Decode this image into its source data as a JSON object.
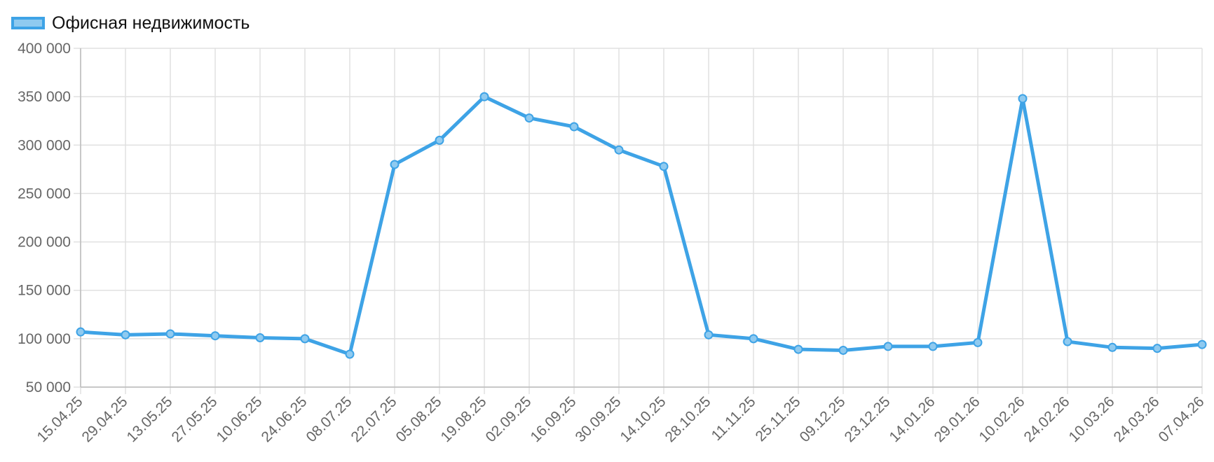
{
  "chart_data": {
    "type": "line",
    "x": [
      "15.04.25",
      "29.04.25",
      "13.05.25",
      "27.05.25",
      "10.06.25",
      "24.06.25",
      "08.07.25",
      "22.07.25",
      "05.08.25",
      "19.08.25",
      "02.09.25",
      "16.09.25",
      "30.09.25",
      "14.10.25",
      "28.10.25",
      "11.11.25",
      "25.11.25",
      "09.12.25",
      "23.12.25",
      "14.01.26",
      "29.01.26",
      "10.02.26",
      "24.02.26",
      "10.03.26",
      "24.03.26",
      "07.04.26"
    ],
    "series": [
      {
        "name": "Офисная недвижимость",
        "color": "#3ea3e6",
        "values": [
          107000,
          104000,
          105000,
          103000,
          101000,
          100000,
          84000,
          280000,
          305000,
          350000,
          328000,
          319000,
          295000,
          278000,
          104000,
          100000,
          89000,
          88000,
          92000,
          92000,
          96000,
          348000,
          97000,
          91000,
          90000,
          94000
        ]
      }
    ],
    "ylim": [
      50000,
      400000
    ],
    "yticks": [
      {
        "value": 50000,
        "label": "50 000"
      },
      {
        "value": 100000,
        "label": "100 000"
      },
      {
        "value": 150000,
        "label": "150 000"
      },
      {
        "value": 200000,
        "label": "200 000"
      },
      {
        "value": 250000,
        "label": "250 000"
      },
      {
        "value": 300000,
        "label": "300 000"
      },
      {
        "value": 350000,
        "label": "350 000"
      },
      {
        "value": 400000,
        "label": "400 000"
      }
    ],
    "grid": true,
    "legend": "top-left"
  }
}
